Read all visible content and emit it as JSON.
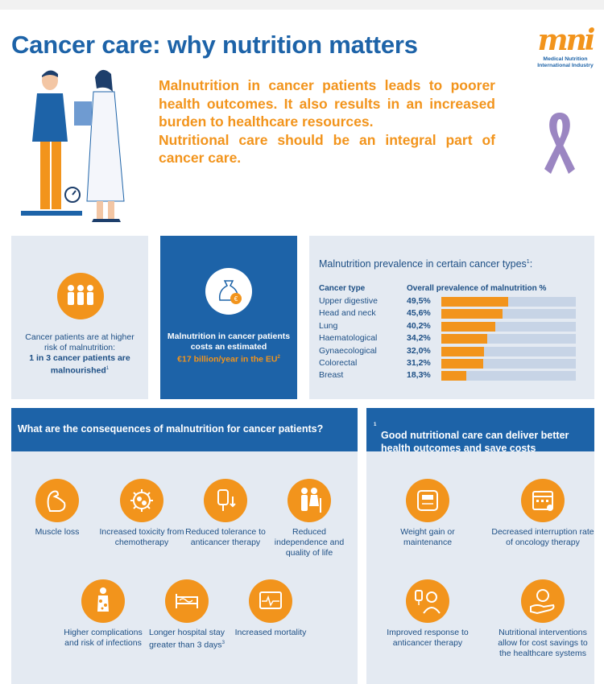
{
  "header": {
    "title": "Cancer care: why nutrition matters",
    "intro_line1": "Malnutrition in cancer patients leads to poorer health outcomes. It also results in an increased burden to healthcare resources.",
    "intro_line2": "Nutritional care should be an integral part of cancer care."
  },
  "logo": {
    "mark": "mni",
    "text_line1": "Medical Nutrition",
    "text_line2": "International Industry"
  },
  "stat_risk": {
    "text": "Cancer patients are at higher risk of malnutrition:",
    "bold": "1 in 3 cancer patients are malnourished",
    "ref": "1"
  },
  "stat_cost": {
    "text": "Malnutrition in cancer patients costs an estimated",
    "highlight": "€17 billion/year in the EU",
    "ref": "2",
    "icon_symbol": "€"
  },
  "chart_data": {
    "type": "bar",
    "title": "Malnutrition prevalence in certain cancer types",
    "title_ref": "1",
    "title_suffix": ":",
    "col_type": "Cancer type",
    "col_value": "Overall prevalence of malnutrition %",
    "categories": [
      "Upper digestive",
      "Head and neck",
      "Lung",
      "Haematological",
      "Gynaecological",
      "Colorectal",
      "Breast"
    ],
    "labels": [
      "49,5%",
      "45,6%",
      "40,2%",
      "34,2%",
      "32,0%",
      "31,2%",
      "18,3%"
    ],
    "values": [
      49.5,
      45.6,
      40.2,
      34.2,
      32.0,
      31.2,
      18.3
    ],
    "xlim": [
      0,
      100
    ],
    "bar_color": "#f2941c",
    "track_color": "#c7d4e6"
  },
  "consequences": {
    "title": "What are the consequences of malnutrition for cancer patients?",
    "items": [
      {
        "label": "Muscle loss",
        "icon": "muscle-icon",
        "ref": ""
      },
      {
        "label": "Increased toxicity from chemotherapy",
        "icon": "toxicity-icon",
        "ref": ""
      },
      {
        "label": "Reduced tolerance to anticancer therapy",
        "icon": "iv-bag-icon",
        "ref": ""
      },
      {
        "label": "Reduced independence and quality of life",
        "icon": "elderly-couple-icon",
        "ref": ""
      },
      {
        "label": "Higher complications and risk of infections",
        "icon": "infection-icon",
        "ref": ""
      },
      {
        "label": "Longer hospital stay greater than 3 days",
        "icon": "hospital-bed-icon",
        "ref": "3"
      },
      {
        "label": "Increased mortality",
        "icon": "heart-monitor-icon",
        "ref": ""
      }
    ]
  },
  "benefits": {
    "title": "Good nutritional care can deliver better health outcomes and save costs",
    "ref": "1",
    "items": [
      {
        "label": "Weight gain or maintenance",
        "icon": "scale-icon"
      },
      {
        "label": "Decreased interruption rate of oncology therapy",
        "icon": "calendar-icon"
      },
      {
        "label": "Improved response to anticancer therapy",
        "icon": "patient-iv-icon"
      },
      {
        "label": "Nutritional interventions allow for cost savings to the healthcare systems",
        "icon": "coin-hand-icon"
      }
    ]
  },
  "colors": {
    "brand_blue": "#1d63a8",
    "accent_orange": "#f2941c",
    "panel_grey": "#e4eaf2",
    "ribbon_purple": "#9b86c2"
  }
}
